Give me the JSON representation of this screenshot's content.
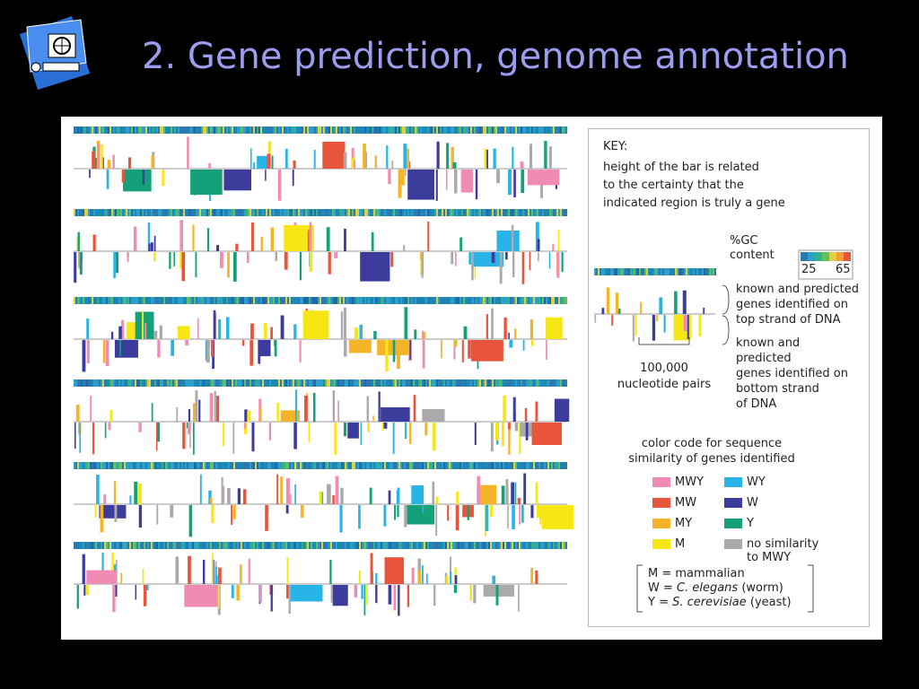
{
  "header": {
    "title": "2. Gene prediction, genome annotation"
  },
  "key": {
    "heading": "KEY:",
    "description": [
      "height of the bar is related",
      "to the certainty that the",
      "indicated region is truly a gene"
    ],
    "gc_label": [
      "%GC",
      "content"
    ],
    "gc_min": "25",
    "gc_max": "65",
    "top_strand": [
      "known and predicted",
      "genes identified on",
      "top strand of DNA"
    ],
    "bottom_strand": [
      "known and",
      "predicted",
      "genes identified on",
      "bottom strand",
      "of DNA"
    ],
    "scale": [
      "100,000",
      "nucleotide pairs"
    ],
    "color_code": [
      "color code for sequence",
      "similarity of genes identified"
    ],
    "legend": [
      {
        "label": [
          "MWY"
        ],
        "color": "#f08cb4"
      },
      {
        "label": [
          "MW"
        ],
        "color": "#e8543c"
      },
      {
        "label": [
          "MY"
        ],
        "color": "#f5b428"
      },
      {
        "label": [
          "M"
        ],
        "color": "#f5e614"
      },
      {
        "label": [
          "WY"
        ],
        "color": "#28b4e6"
      },
      {
        "label": [
          "W"
        ],
        "color": "#3c3c9c"
      },
      {
        "label": [
          "Y"
        ],
        "color": "#14a078"
      },
      {
        "label": [
          "no similarity",
          "to MWY"
        ],
        "color": "#aaaaaa"
      }
    ],
    "abbreviations": [
      [
        "M = mammalian"
      ],
      [
        "W = ",
        "C. elegans",
        " (worm)"
      ],
      [
        "Y = ",
        "S. cerevisiae",
        " (yeast)"
      ]
    ]
  }
}
